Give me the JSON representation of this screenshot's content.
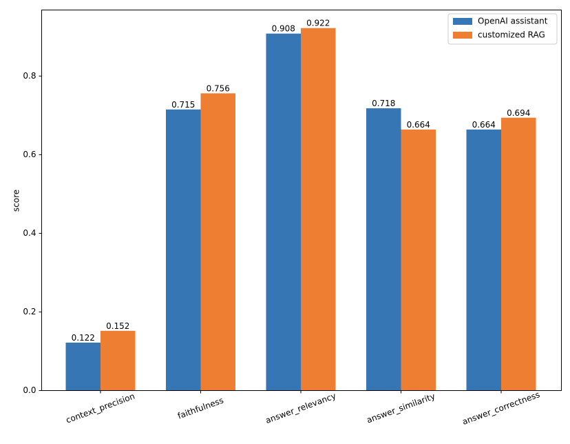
{
  "chart_data": {
    "type": "bar",
    "title": "",
    "xlabel": "",
    "ylabel": "score",
    "categories": [
      "context_precision",
      "faithfulness",
      "answer_relevancy",
      "answer_similarity",
      "answer_correctness"
    ],
    "series": [
      {
        "name": "OpenAI assistant",
        "color": "#3776b4",
        "values": [
          0.122,
          0.715,
          0.908,
          0.718,
          0.664
        ]
      },
      {
        "name": "customized RAG",
        "color": "#ee7e32",
        "values": [
          0.152,
          0.756,
          0.922,
          0.664,
          0.694
        ]
      }
    ],
    "value_labels": [
      [
        "0.122",
        "0.715",
        "0.908",
        "0.718",
        "0.664"
      ],
      [
        "0.152",
        "0.756",
        "0.922",
        "0.664",
        "0.694"
      ]
    ],
    "ylim": [
      0,
      0.968
    ],
    "yticks": [
      0.0,
      0.2,
      0.4,
      0.6,
      0.8
    ],
    "ytick_labels": [
      "0.0",
      "0.2",
      "0.4",
      "0.6",
      "0.8"
    ],
    "legend_position": "top-right",
    "grid": false
  }
}
